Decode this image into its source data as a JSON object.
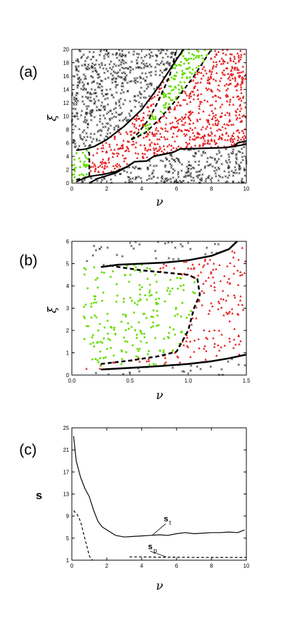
{
  "chart_data": [
    {
      "type": "scatter",
      "panel_label": "(a)",
      "xlabel": "ν",
      "ylabel": "ξ",
      "xlim": [
        0,
        10
      ],
      "ylim": [
        0,
        20
      ],
      "xticks": [
        0,
        2,
        4,
        6,
        8,
        10
      ],
      "yticks": [
        0,
        2,
        4,
        6,
        8,
        10,
        12,
        14,
        16,
        18,
        20
      ],
      "colors": {
        "black": "#222222",
        "red": "#e31a1c",
        "green": "#66dd00"
      },
      "marker_density": {
        "black_cross": 1.0,
        "red_triangle": 1.0,
        "green_dot": 1.0
      },
      "lines": [
        {
          "style": "solid",
          "points": [
            [
              1.0,
              0.0
            ],
            [
              1.5,
              0.7
            ],
            [
              2.5,
              1.5
            ],
            [
              3.2,
              2.5
            ],
            [
              3.6,
              3.2
            ],
            [
              4.3,
              3.3
            ],
            [
              4.7,
              4.0
            ],
            [
              5.8,
              4.6
            ],
            [
              6.2,
              5.1
            ],
            [
              7.5,
              5.2
            ],
            [
              8.8,
              5.3
            ],
            [
              9.3,
              5.5
            ],
            [
              9.5,
              6.0
            ],
            [
              10.0,
              6.3
            ]
          ]
        },
        {
          "style": "solid",
          "points": [
            [
              0.25,
              0.2
            ],
            [
              0.6,
              0.6
            ],
            [
              1.0,
              1.0
            ],
            [
              1.8,
              1.3
            ],
            [
              2.5,
              1.7
            ],
            [
              3.2,
              2.5
            ],
            [
              3.6,
              3.2
            ],
            [
              4.3,
              3.3
            ],
            [
              4.7,
              4.0
            ],
            [
              5.8,
              4.6
            ],
            [
              6.2,
              5.1
            ],
            [
              8.8,
              5.3
            ],
            [
              9.3,
              5.5
            ],
            [
              10.0,
              5.8
            ]
          ]
        },
        {
          "style": "solid",
          "points": [
            [
              0.25,
              4.9
            ],
            [
              0.8,
              5.1
            ],
            [
              1.3,
              5.5
            ],
            [
              2.0,
              6.5
            ],
            [
              3.0,
              8.5
            ],
            [
              4.0,
              11.0
            ],
            [
              5.0,
              14.5
            ],
            [
              6.0,
              18.5
            ],
            [
              6.4,
              20.0
            ]
          ]
        },
        {
          "style": "dashed",
          "points": [
            [
              0.25,
              0.5
            ],
            [
              0.6,
              0.7
            ],
            [
              1.0,
              1.0
            ],
            [
              1.0,
              2.5
            ],
            [
              1.0,
              4.0
            ],
            [
              1.0,
              4.5
            ],
            [
              0.8,
              4.9
            ]
          ]
        },
        {
          "style": "dashed",
          "points": [
            [
              3.4,
              6.5
            ],
            [
              3.8,
              7.5
            ],
            [
              4.4,
              9.5
            ],
            [
              5.0,
              12.5
            ],
            [
              5.6,
              16.0
            ],
            [
              6.0,
              20.0
            ]
          ]
        },
        {
          "style": "dashed",
          "points": [
            [
              3.4,
              6.5
            ],
            [
              4.2,
              7.5
            ],
            [
              5.0,
              9.5
            ],
            [
              6.0,
              12.5
            ],
            [
              7.0,
              16.0
            ],
            [
              8.0,
              20.0
            ]
          ]
        }
      ]
    },
    {
      "type": "scatter",
      "panel_label": "(b)",
      "xlabel": "ν",
      "ylabel": "ξ",
      "xlim": [
        0,
        1.5
      ],
      "ylim": [
        0,
        6
      ],
      "xticks": [
        0.0,
        0.5,
        1.0,
        1.5
      ],
      "yticks": [
        0,
        1,
        2,
        3,
        4,
        5,
        6
      ],
      "colors": {
        "black": "#222222",
        "red": "#e31a1c",
        "green": "#66dd00"
      },
      "lines": [
        {
          "style": "solid",
          "points": [
            [
              0.25,
              4.85
            ],
            [
              0.4,
              4.95
            ],
            [
              0.6,
              5.0
            ],
            [
              0.8,
              5.05
            ],
            [
              1.0,
              5.15
            ],
            [
              1.2,
              5.35
            ],
            [
              1.35,
              5.65
            ],
            [
              1.42,
              6.0
            ]
          ]
        },
        {
          "style": "solid",
          "points": [
            [
              0.25,
              0.25
            ],
            [
              0.5,
              0.32
            ],
            [
              0.75,
              0.4
            ],
            [
              1.0,
              0.5
            ],
            [
              1.2,
              0.62
            ],
            [
              1.35,
              0.75
            ],
            [
              1.5,
              0.92
            ]
          ]
        },
        {
          "style": "dashed",
          "points": [
            [
              0.25,
              0.5
            ],
            [
              0.5,
              0.65
            ],
            [
              0.75,
              0.85
            ],
            [
              0.9,
              1.05
            ],
            [
              1.0,
              2.0
            ],
            [
              1.05,
              3.0
            ],
            [
              1.1,
              3.6
            ],
            [
              1.08,
              4.3
            ],
            [
              1.0,
              4.5
            ],
            [
              0.8,
              4.6
            ],
            [
              0.6,
              4.7
            ],
            [
              0.4,
              4.85
            ],
            [
              0.3,
              4.95
            ]
          ]
        }
      ]
    },
    {
      "type": "line",
      "panel_label": "(c)",
      "xlabel": "ν",
      "ylabel": "s",
      "xlim": [
        0,
        10
      ],
      "ylim": [
        1,
        25
      ],
      "xticks": [
        0,
        2,
        4,
        6,
        8,
        10
      ],
      "yticks": [
        1,
        5,
        9,
        13,
        17,
        21,
        25
      ],
      "series": [
        {
          "name": "s_t",
          "style": "solid",
          "x": [
            0.1,
            0.25,
            0.5,
            0.75,
            1.0,
            1.25,
            1.5,
            1.75,
            2.0,
            2.25,
            2.5,
            3.0,
            3.5,
            4.0,
            4.5,
            5.0,
            5.5,
            6.0,
            6.5,
            7.0,
            7.5,
            8.0,
            8.5,
            9.0,
            9.5,
            9.9
          ],
          "y": [
            23.5,
            19.0,
            16.0,
            14.0,
            12.5,
            10.0,
            8.0,
            7.0,
            6.5,
            6.0,
            5.5,
            5.2,
            5.3,
            5.4,
            5.5,
            5.6,
            5.5,
            5.8,
            6.0,
            5.8,
            5.9,
            6.0,
            6.0,
            6.1,
            6.0,
            6.5
          ]
        },
        {
          "name": "s_p",
          "style": "dashed",
          "x": [
            0.1,
            0.3,
            0.5,
            0.7,
            0.9,
            1.0,
            1.1,
            1.2
          ],
          "y": [
            10.0,
            9.3,
            8.0,
            5.5,
            3.0,
            1.8,
            1.2,
            1.0
          ]
        },
        {
          "name": "s_p",
          "style": "dashed",
          "x": [
            3.3,
            4.0,
            5.0,
            6.0,
            7.0,
            8.0,
            9.0,
            10.0
          ],
          "y": [
            1.6,
            1.6,
            1.55,
            1.55,
            1.5,
            1.5,
            1.5,
            1.5
          ]
        }
      ],
      "annotations": [
        {
          "text": "s",
          "sub": "t",
          "at": [
            4.6,
            5.5
          ],
          "label_at": [
            5.5,
            8.0
          ]
        },
        {
          "text": "s",
          "sub": "p",
          "at": [
            5.4,
            1.6
          ],
          "label_at": [
            4.6,
            3.0
          ]
        }
      ]
    }
  ]
}
